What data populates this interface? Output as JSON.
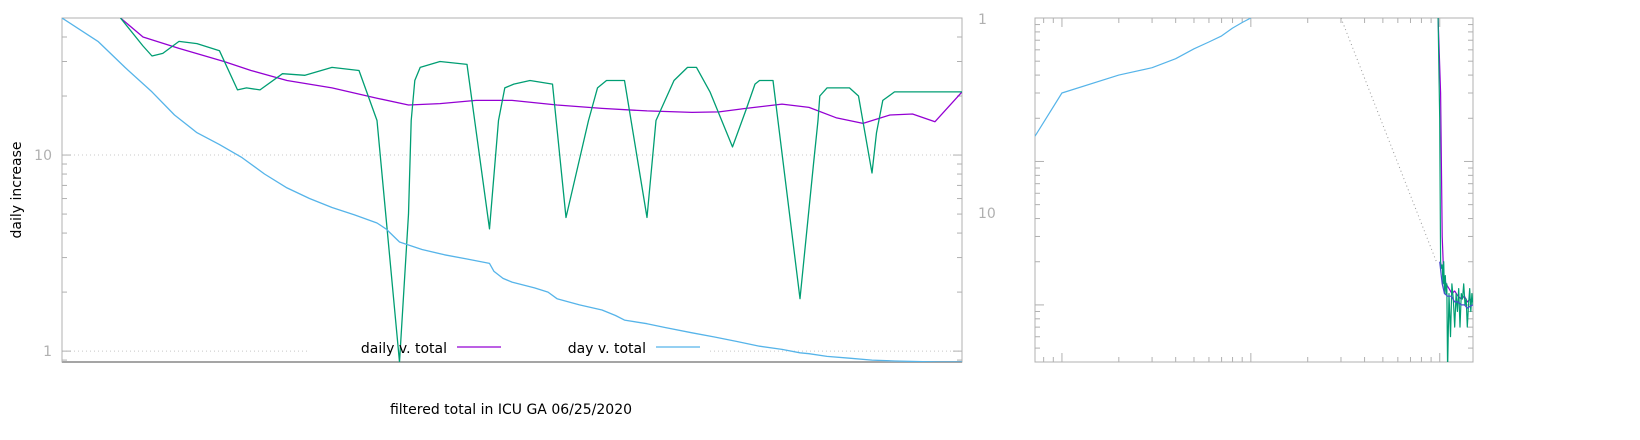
{
  "chart_data": [
    {
      "type": "line",
      "title": "",
      "xlabel": "filtered total in ICU GA 06/25/2020",
      "ylabel": "daily increase",
      "y_scale": "log",
      "ylim": [
        0.88,
        50
      ],
      "y_ticks": [
        {
          "value": 1,
          "label": "1"
        },
        {
          "value": 10,
          "label": "10"
        }
      ],
      "right_y_ticks": [
        "1",
        "10"
      ],
      "xlim": [
        0,
        1000
      ],
      "grid": true,
      "legend": {
        "placement": "bottom-center",
        "entries": [
          "daily v. total",
          "day v. total"
        ]
      },
      "series": [
        {
          "name": "daily v. total",
          "color": "#9400d3",
          "x": [
            65,
            90,
            130,
            180,
            210,
            250,
            300,
            350,
            385,
            420,
            460,
            500,
            550,
            600,
            650,
            700,
            730,
            760,
            800,
            830,
            860,
            890,
            920,
            945,
            970,
            1000
          ],
          "y": [
            50,
            40,
            35,
            30,
            27,
            24,
            22,
            19.5,
            18,
            18.3,
            19,
            19,
            18,
            17.3,
            16.8,
            16.5,
            16.6,
            17.3,
            18.2,
            17.5,
            15.5,
            14.5,
            16,
            16.2,
            14.8,
            21
          ]
        },
        {
          "name": "",
          "color": "#009e73",
          "x": [
            65,
            90,
            100,
            112,
            130,
            150,
            175,
            195,
            205,
            220,
            245,
            270,
            300,
            330,
            350,
            375,
            385,
            388,
            392,
            398,
            420,
            450,
            475,
            485,
            492,
            502,
            520,
            545,
            560,
            585,
            595,
            605,
            625,
            650,
            660,
            680,
            695,
            705,
            720,
            745,
            760,
            770,
            775,
            790,
            820,
            835,
            840,
            842,
            850,
            875,
            885,
            900,
            905,
            912,
            925,
            945,
            1000
          ],
          "y": [
            50,
            36,
            32,
            33,
            38,
            37,
            34,
            21.5,
            22,
            21.5,
            26,
            25.5,
            28,
            27,
            15,
            0.88,
            5,
            15,
            24,
            28,
            30,
            29,
            4.2,
            15,
            22,
            23,
            24,
            23,
            4.8,
            15,
            22,
            24,
            24,
            4.8,
            15,
            24,
            28,
            28,
            21,
            11,
            17,
            23,
            24,
            24,
            1.85,
            9,
            15,
            20,
            22,
            22,
            20,
            8.1,
            13,
            19,
            21,
            21,
            21
          ]
        },
        {
          "name": "day v. total",
          "color": "#56b4e9",
          "x": [
            0,
            40,
            70,
            100,
            125,
            150,
            175,
            200,
            225,
            250,
            275,
            300,
            325,
            350,
            360,
            375,
            400,
            425,
            450,
            475,
            480,
            490,
            500,
            525,
            540,
            550,
            575,
            600,
            615,
            625,
            650,
            670,
            700,
            725,
            750,
            775,
            800,
            820,
            830,
            850,
            875,
            900,
            925,
            950,
            975,
            1000
          ],
          "y": [
            50,
            38,
            28,
            21,
            16,
            13,
            11.3,
            9.7,
            8,
            6.8,
            6,
            5.4,
            4.95,
            4.5,
            4.2,
            3.6,
            3.3,
            3.1,
            2.95,
            2.8,
            2.55,
            2.35,
            2.25,
            2.1,
            2.0,
            1.85,
            1.72,
            1.62,
            1.52,
            1.44,
            1.38,
            1.32,
            1.24,
            1.18,
            1.12,
            1.06,
            1.02,
            0.98,
            0.97,
            0.94,
            0.92,
            0.9,
            0.89,
            0.885,
            0.88,
            0.88
          ]
        }
      ]
    },
    {
      "type": "line",
      "title": "",
      "xlabel": "",
      "ylabel": "",
      "x_scale": "log",
      "y_scale": "log",
      "xlim": [
        0.72,
        150
      ],
      "ylim": [
        4,
        1000
      ],
      "grid": false,
      "series": [
        {
          "name": "",
          "color": "#56b4e9",
          "x": [
            0.72,
            1,
            2,
            3,
            4,
            5,
            6,
            7,
            8,
            9,
            10
          ],
          "y": [
            150,
            300,
            400,
            450,
            520,
            610,
            680,
            750,
            850,
            930,
            1000
          ]
        },
        {
          "name": "",
          "color": "#9400d3",
          "x": [
            98,
            101,
            103,
            105,
            108,
            112,
            116,
            120,
            125,
            130,
            135,
            140,
            145,
            150
          ],
          "y": [
            1000,
            300,
            30,
            16,
            14,
            13,
            12,
            12.5,
            11.5,
            11,
            11.5,
            10.5,
            11,
            10.5
          ]
        },
        {
          "name": "",
          "color": "#009e73",
          "x": [
            98,
            100,
            101,
            102,
            103,
            104,
            105,
            106,
            107,
            108,
            109,
            110,
            112,
            114,
            116,
            118,
            120,
            122,
            124,
            126,
            128,
            130,
            132,
            134,
            136,
            138,
            140,
            142,
            144,
            146,
            148,
            150
          ],
          "y": [
            1000,
            200,
            20,
            18,
            19,
            14,
            20,
            12,
            16,
            12,
            14,
            3.5,
            12,
            6,
            14,
            11,
            7,
            12,
            9,
            13,
            7,
            12,
            11,
            14,
            10,
            11,
            7,
            10,
            13,
            9,
            12,
            10
          ]
        },
        {
          "name": "",
          "color": "#4a4ad0",
          "x": [
            100,
            103,
            106,
            110,
            115,
            120,
            125,
            130,
            135,
            140,
            145,
            150
          ],
          "y": [
            20,
            14,
            12,
            11.5,
            11.5,
            10.5,
            10.5,
            10,
            10,
            9.5,
            9.8,
            10
          ]
        },
        {
          "name": "",
          "color": "#999999",
          "dashed": true,
          "x": [
            30,
            96
          ],
          "y": [
            1000,
            20
          ]
        }
      ]
    }
  ]
}
